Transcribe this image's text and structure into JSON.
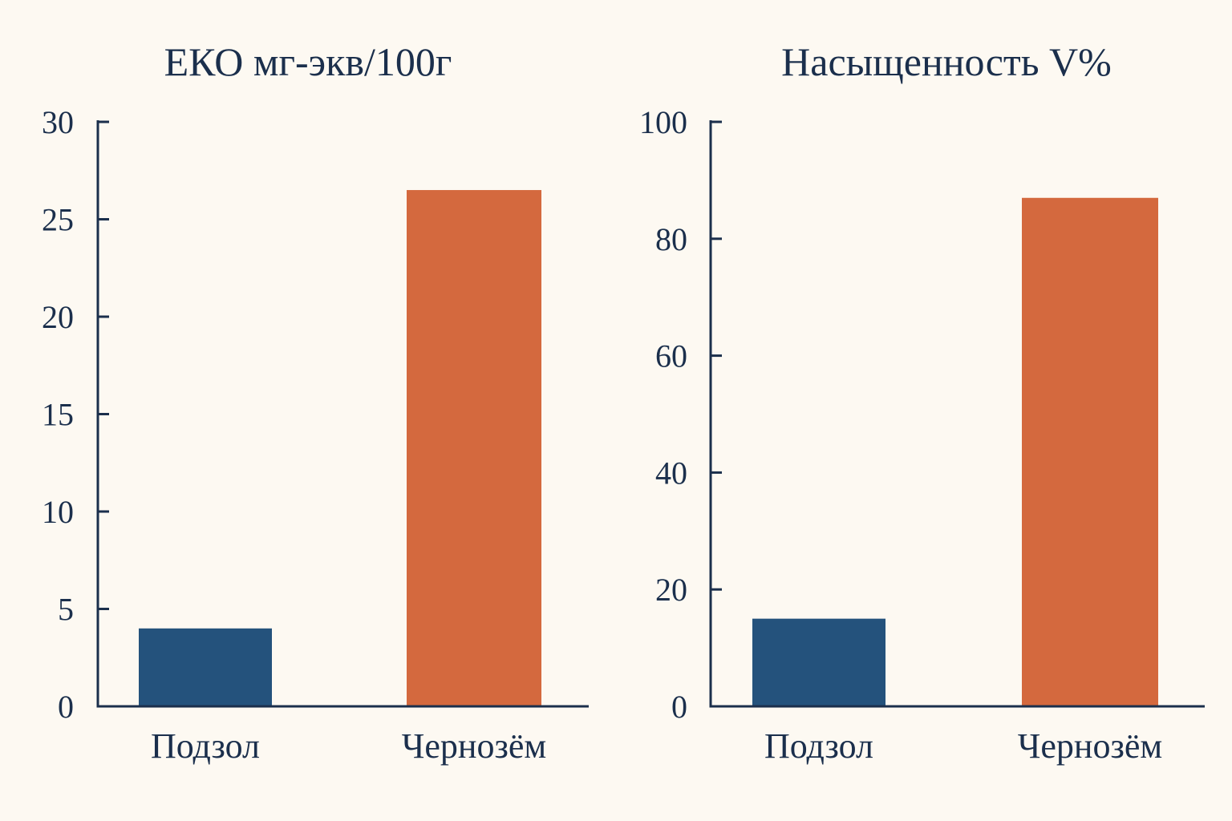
{
  "colors": {
    "background": "#fdf9f2",
    "text": "#1b2f4c",
    "podzol": "#24527c",
    "chernozem": "#d4693e"
  },
  "chart_data": [
    {
      "type": "bar",
      "title": "ЕКО мг-экв/100г",
      "categories": [
        "Подзол",
        "Чернозём"
      ],
      "values": [
        4,
        26.5
      ],
      "bar_colors": [
        "#24527c",
        "#d4693e"
      ],
      "ylim": [
        0,
        30
      ],
      "yticks": [
        0,
        5,
        10,
        15,
        20,
        25,
        30
      ],
      "ytick_labels": [
        "0",
        "5",
        "10",
        "15",
        "20",
        "25",
        "30"
      ],
      "xlabel": "",
      "ylabel": "",
      "grid": false,
      "legend": false
    },
    {
      "type": "bar",
      "title": "Насыщенность V%",
      "categories": [
        "Подзол",
        "Чернозём"
      ],
      "values": [
        15,
        87
      ],
      "bar_colors": [
        "#24527c",
        "#d4693e"
      ],
      "ylim": [
        0,
        100
      ],
      "yticks": [
        0,
        20,
        40,
        60,
        80,
        100
      ],
      "ytick_labels": [
        "0",
        "20",
        "40",
        "60",
        "80",
        "100"
      ],
      "xlabel": "",
      "ylabel": "",
      "grid": false,
      "legend": false
    }
  ]
}
